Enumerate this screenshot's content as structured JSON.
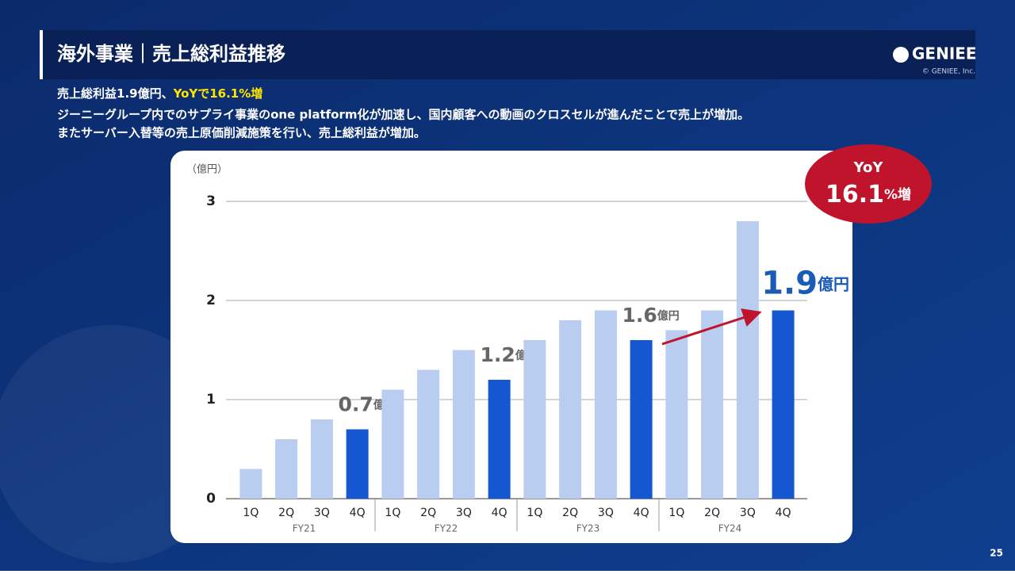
{
  "slide": {
    "title": "海外事業｜売上総利益推移",
    "logo": "GENIEE",
    "copyright": "© GENIEE, Inc.",
    "summary": {
      "lead": "売上総利益1.9億円、",
      "highlight": "YoYで16.1%増"
    },
    "lines": [
      "ジーニーグループ内でのサプライ事業のone platform化が加速し、国内顧客への動画のクロスセルが進んだことで売上が増加。",
      "またサーバー入替等の売上原価削減施策を行い、売上総利益が増加。"
    ],
    "yoy": {
      "label": "YoY",
      "number": "16.1",
      "unit": "%増"
    },
    "page_number": "25"
  },
  "chart_data": {
    "type": "bar",
    "y_label": "（億円）",
    "categories": [
      "1Q",
      "2Q",
      "3Q",
      "4Q",
      "1Q",
      "2Q",
      "3Q",
      "4Q",
      "1Q",
      "2Q",
      "3Q",
      "4Q",
      "1Q",
      "2Q",
      "3Q",
      "4Q"
    ],
    "groups": [
      "FY21",
      "FY22",
      "FY23",
      "FY24"
    ],
    "values": [
      0.3,
      0.6,
      0.8,
      0.7,
      1.1,
      1.3,
      1.5,
      1.2,
      1.6,
      1.8,
      1.9,
      1.6,
      1.7,
      1.9,
      2.8,
      1.9
    ],
    "value_labels": [
      null,
      null,
      null,
      "0.7億円",
      null,
      null,
      null,
      "1.2億円",
      null,
      null,
      null,
      "1.6億円",
      null,
      null,
      null,
      "1.9億円"
    ],
    "colors": [
      "#b9cdf0",
      "#b9cdf0",
      "#b9cdf0",
      "#1557d0",
      "#b9cdf0",
      "#b9cdf0",
      "#b9cdf0",
      "#1557d0",
      "#b9cdf0",
      "#b9cdf0",
      "#b9cdf0",
      "#1557d0",
      "#b9cdf0",
      "#b9cdf0",
      "#b9cdf0",
      "#1557d0"
    ],
    "ylim": [
      0,
      3
    ],
    "yticks": [
      0,
      1,
      2,
      3
    ],
    "grid": true
  }
}
